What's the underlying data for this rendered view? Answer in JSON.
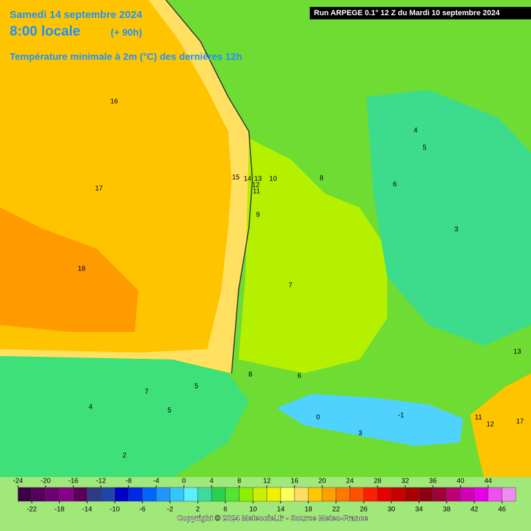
{
  "header": {
    "date": "Samedi 14 septembre 2024",
    "time": "8:00 locale",
    "offset": "(+ 90h)",
    "parameter": "Température minimale à 2m (°C) des dernières 12h",
    "run": "Run ARPEGE 0.1° 12 Z du Mardi 10 septembre 2024"
  },
  "legend": {
    "range": [
      -24,
      48
    ],
    "colors": [
      "#3c0046",
      "#55005a",
      "#6e0073",
      "#87008c",
      "#5a005a",
      "#2d3c82",
      "#1e46aa",
      "#0000c8",
      "#0028e6",
      "#0064ff",
      "#1e96ff",
      "#32c8ff",
      "#5af0ff",
      "#3cdca0",
      "#28d250",
      "#50e632",
      "#8cf000",
      "#c8f000",
      "#f0f000",
      "#ffff5a",
      "#ffdc64",
      "#ffc800",
      "#ffa000",
      "#ff7800",
      "#ff5000",
      "#ff1e00",
      "#e60000",
      "#c80000",
      "#aa0000",
      "#8c0014",
      "#a0003c",
      "#be0078",
      "#d200b4",
      "#e600e6",
      "#f050f0",
      "#f08cf0"
    ],
    "ticks_top": [
      -24,
      -20,
      -16,
      -12,
      -8,
      -4,
      0,
      4,
      8,
      12,
      16,
      20,
      24,
      28,
      32,
      36,
      40,
      44
    ],
    "ticks_bottom": [
      -22,
      -18,
      -14,
      -10,
      -6,
      -2,
      2,
      6,
      10,
      14,
      18,
      22,
      26,
      30,
      34,
      38,
      42,
      46
    ]
  },
  "map_labels": [
    16,
    17,
    18,
    15,
    14,
    13,
    12,
    11,
    10,
    9,
    8,
    7,
    6,
    5,
    4,
    3,
    8,
    6,
    0,
    -1,
    3,
    2,
    5,
    4,
    13,
    17,
    12,
    11,
    7,
    5
  ],
  "footer": {
    "copyright": "Copyright © 2024 Meteociel.fr - Source Meteo-France"
  }
}
